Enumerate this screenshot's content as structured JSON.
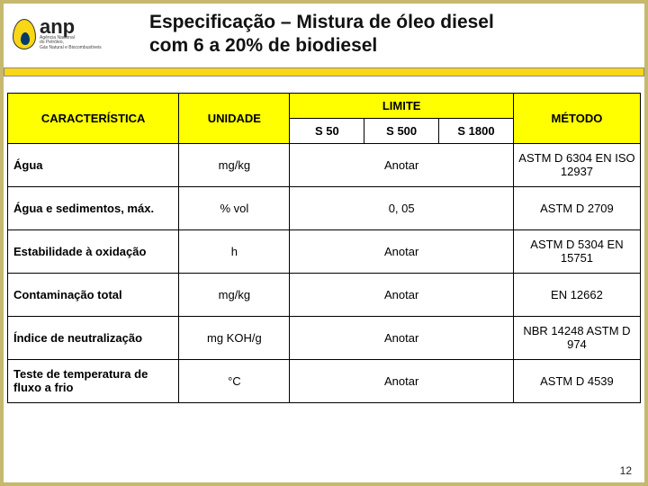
{
  "logo": {
    "name": "anp",
    "sub1": "Agência Nacional",
    "sub2": "do Petróleo,",
    "sub3": "Gás Natural e Biocombustíveis"
  },
  "title_line1": "Especificação – Mistura de óleo diesel",
  "title_line2": "com 6 a 20% de biodiesel",
  "columns": {
    "caracteristica": "CARACTERÍSTICA",
    "unidade": "UNIDADE",
    "limite": "LIMITE",
    "metodo": "MÉTODO",
    "s50": "S 50",
    "s500": "S 500",
    "s1800": "S 1800"
  },
  "rows": [
    {
      "car": "Água",
      "uni": "mg/kg",
      "lim": "Anotar",
      "met": "ASTM D 6304 EN ISO 12937"
    },
    {
      "car": "Água e sedimentos, máx.",
      "uni": "% vol",
      "lim": "0, 05",
      "met": "ASTM D 2709"
    },
    {
      "car": "Estabilidade à oxidação",
      "uni": "h",
      "lim": "Anotar",
      "met": "ASTM D 5304 EN 15751"
    },
    {
      "car": "Contaminação total",
      "uni": "mg/kg",
      "lim": "Anotar",
      "met": "EN 12662"
    },
    {
      "car": "Índice de neutralização",
      "uni": "mg KOH/g",
      "lim": "Anotar",
      "met": "NBR 14248 ASTM D 974"
    },
    {
      "car": "Teste de temperatura de fluxo a frio",
      "uni": "°C",
      "lim": "Anotar",
      "met": "ASTM D 4539"
    }
  ],
  "page_number": "12"
}
